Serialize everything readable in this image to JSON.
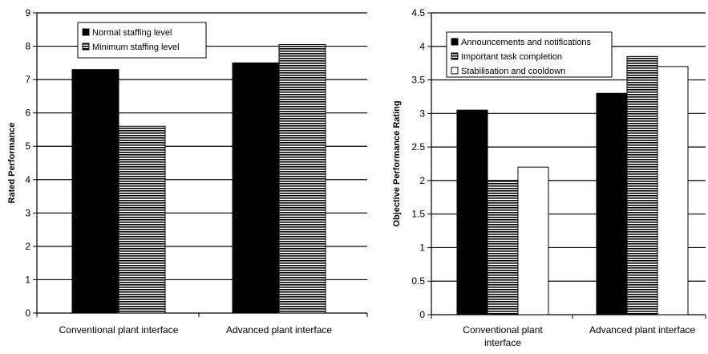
{
  "chart_data": [
    {
      "type": "bar",
      "categories": [
        "Conventional plant interface",
        "Advanced plant interface"
      ],
      "series": [
        {
          "name": "Normal staffing level",
          "values": [
            7.3,
            7.5
          ],
          "pattern": "solid"
        },
        {
          "name": "Minimum staffing level",
          "values": [
            5.6,
            8.05
          ],
          "pattern": "hstripe"
        }
      ],
      "ylabel": "Rated Performance",
      "ylim": [
        0,
        9
      ],
      "yticks": [
        "0",
        "1",
        "2",
        "3",
        "4",
        "5",
        "6",
        "7",
        "8",
        "9"
      ],
      "grid": true,
      "legend": "top-left"
    },
    {
      "type": "bar",
      "categories": [
        "Conventional plant interface",
        "Advanced plant interface"
      ],
      "series": [
        {
          "name": "Announcements and notifications",
          "values": [
            3.05,
            3.3
          ],
          "pattern": "solid"
        },
        {
          "name": "Important task completion",
          "values": [
            2.0,
            3.85
          ],
          "pattern": "hstripe"
        },
        {
          "name": "Stabilisation and cooldown",
          "values": [
            2.2,
            3.7
          ],
          "pattern": "white"
        }
      ],
      "ylabel": "Objective Performance Rating",
      "ylim": [
        0,
        4.5
      ],
      "yticks": [
        "0",
        "0.5",
        "1",
        "1.5",
        "2",
        "2.5",
        "3",
        "3.5",
        "4",
        "4.5"
      ],
      "grid": true,
      "legend": "top-left"
    }
  ]
}
